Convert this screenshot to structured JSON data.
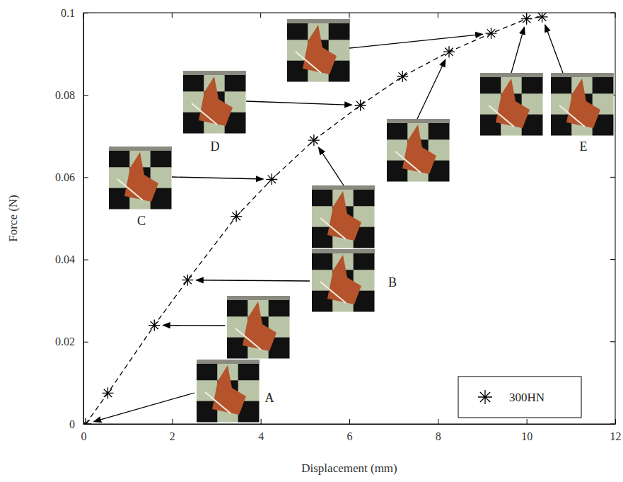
{
  "chart_data": {
    "type": "line",
    "x_label": "Displacement (mm)",
    "y_label": "Force (N)",
    "x": [
      0.05,
      0.55,
      1.6,
      2.35,
      3.45,
      4.25,
      5.2,
      6.25,
      7.2,
      8.25,
      9.2,
      10.0,
      10.35
    ],
    "series": [
      {
        "name": "300HN",
        "color": "#000000",
        "marker": "asterisk",
        "line_style": "dashed",
        "values": [
          0,
          0.0075,
          0.024,
          0.035,
          0.0505,
          0.0595,
          0.069,
          0.0775,
          0.0845,
          0.0905,
          0.095,
          0.0985,
          0.099
        ]
      }
    ],
    "xlim": [
      0,
      12
    ],
    "ylim": [
      0,
      0.1
    ],
    "xticks": [
      0,
      2,
      4,
      6,
      8,
      10,
      12
    ],
    "yticks": [
      0,
      0.02,
      0.04,
      0.06,
      0.08,
      0.1
    ],
    "grid": false,
    "legend": "lower right",
    "annotations": [
      "A",
      "B",
      "C",
      "D",
      "E"
    ]
  }
}
